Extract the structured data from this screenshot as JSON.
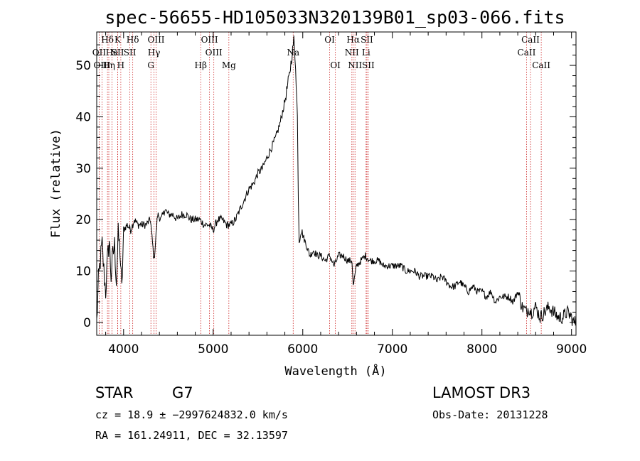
{
  "chart_data": {
    "type": "line",
    "title": "spec-56655-HD105033N320139B01_sp03-066.fits",
    "xlabel": "Wavelength (Å)",
    "ylabel": "Flux (relative)",
    "xlim": [
      3700,
      9050
    ],
    "ylim": [
      -2.5,
      56.5
    ],
    "xticks": [
      4000,
      5000,
      6000,
      7000,
      8000,
      9000
    ],
    "yticks": [
      0,
      10,
      20,
      30,
      40,
      50
    ],
    "series": [
      {
        "name": "flux",
        "x": [
          3700,
          3720,
          3740,
          3760,
          3780,
          3800,
          3820,
          3840,
          3860,
          3880,
          3900,
          3920,
          3940,
          3960,
          3980,
          4000,
          4040,
          4080,
          4120,
          4160,
          4200,
          4250,
          4300,
          4340,
          4380,
          4420,
          4460,
          4500,
          4550,
          4600,
          4650,
          4700,
          4750,
          4800,
          4850,
          4900,
          4950,
          5000,
          5050,
          5100,
          5150,
          5200,
          5250,
          5300,
          5350,
          5400,
          5450,
          5500,
          5550,
          5600,
          5650,
          5700,
          5750,
          5800,
          5820,
          5850,
          5880,
          5900,
          5920,
          5940,
          5950,
          5960,
          5980,
          6000,
          6040,
          6080,
          6120,
          6160,
          6200,
          6250,
          6300,
          6350,
          6400,
          6450,
          6500,
          6550,
          6563,
          6600,
          6650,
          6700,
          6750,
          6800,
          6850,
          6900,
          6950,
          7000,
          7050,
          7100,
          7150,
          7200,
          7250,
          7300,
          7350,
          7400,
          7450,
          7500,
          7550,
          7600,
          7650,
          7700,
          7750,
          7800,
          7850,
          7900,
          7950,
          8000,
          8050,
          8100,
          8150,
          8200,
          8250,
          8300,
          8350,
          8400,
          8450,
          8500,
          8520,
          8550,
          8600,
          8650,
          8700,
          8750,
          8800,
          8850,
          8900,
          8950,
          9000,
          9020,
          9050
        ],
        "y": [
          0,
          8,
          12,
          15,
          10,
          6,
          12,
          16,
          9,
          13,
          15,
          8,
          17,
          14,
          6,
          18,
          19,
          18,
          20,
          19,
          19,
          19,
          20,
          12,
          21,
          20,
          22,
          21,
          21,
          20,
          21,
          21,
          20,
          20,
          20,
          19,
          19,
          18,
          20,
          20,
          19,
          19,
          20,
          22,
          24,
          26,
          27,
          29,
          30,
          32,
          34,
          36,
          39,
          43,
          45,
          48,
          52,
          55,
          50,
          40,
          25,
          16,
          18,
          17,
          15,
          13,
          14,
          13,
          13,
          12,
          13,
          11,
          13,
          13,
          12,
          12,
          7,
          11,
          12,
          13,
          12,
          12,
          12,
          11,
          11,
          11,
          11,
          11,
          10,
          10,
          10,
          9,
          9,
          9,
          9,
          8,
          9,
          8,
          7,
          7,
          8,
          7,
          6,
          7,
          6,
          6,
          5,
          6,
          4,
          5,
          5,
          5,
          4,
          6,
          3,
          2,
          3,
          2,
          3,
          1,
          2,
          3,
          2,
          1,
          1,
          2,
          1,
          0,
          0
        ]
      }
    ],
    "spectral_lines": [
      {
        "label": "Hδ",
        "wavelength": 3820,
        "row": 0
      },
      {
        "label": "OII",
        "wavelength": 3727,
        "row": 1
      },
      {
        "label": "OIII",
        "wavelength": 3760,
        "row": 2
      },
      {
        "label": "He",
        "wavelength": 3870,
        "row": 1
      },
      {
        "label": "Hη",
        "wavelength": 3835,
        "row": 2
      },
      {
        "label": "K",
        "wavelength": 3934,
        "row": 0
      },
      {
        "label": "SII",
        "wavelength": 3935,
        "row": 1
      },
      {
        "label": "H",
        "wavelength": 3969,
        "row": 2
      },
      {
        "label": "Hδ",
        "wavelength": 4102,
        "row": 0
      },
      {
        "label": "SII",
        "wavelength": 4070,
        "row": 1
      },
      {
        "label": "OIII",
        "wavelength": 4363,
        "row": 0
      },
      {
        "label": "Hγ",
        "wavelength": 4340,
        "row": 1
      },
      {
        "label": "G",
        "wavelength": 4305,
        "row": 2
      },
      {
        "label": "Hβ",
        "wavelength": 4861,
        "row": 2
      },
      {
        "label": "OIII",
        "wavelength": 4959,
        "row": 0
      },
      {
        "label": "OIII",
        "wavelength": 5007,
        "row": 1
      },
      {
        "label": "Mg",
        "wavelength": 5175,
        "row": 2
      },
      {
        "label": "Na",
        "wavelength": 5893,
        "row": 1
      },
      {
        "label": "OI",
        "wavelength": 6300,
        "row": 0
      },
      {
        "label": "OI",
        "wavelength": 6364,
        "row": 2
      },
      {
        "label": "Hα",
        "wavelength": 6563,
        "row": 0
      },
      {
        "label": "NII",
        "wavelength": 6548,
        "row": 1
      },
      {
        "label": "NII",
        "wavelength": 6583,
        "row": 2
      },
      {
        "label": "SII",
        "wavelength": 6716,
        "row": 0
      },
      {
        "label": "Li",
        "wavelength": 6707,
        "row": 1
      },
      {
        "label": "SII",
        "wavelength": 6731,
        "row": 2
      },
      {
        "label": "CaII",
        "wavelength": 8542,
        "row": 0
      },
      {
        "label": "CaII",
        "wavelength": 8498,
        "row": 1
      },
      {
        "label": "CaII",
        "wavelength": 8662,
        "row": 2
      }
    ],
    "line_color": "#000000",
    "marker_color": "#cc2222"
  },
  "info": {
    "class": "STAR",
    "subclass": "G7",
    "survey": "LAMOST DR3",
    "cz": "cz = 18.9 ± −2997624832.0 km/s",
    "obs_date": "Obs-Date: 20131228",
    "coords": "RA = 161.24911, DEC =  32.13597"
  }
}
